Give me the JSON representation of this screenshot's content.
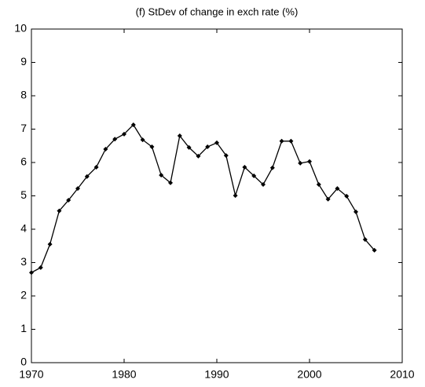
{
  "chart_data": {
    "type": "line",
    "title": "(f) StDev of change in exch rate (%)",
    "x": [
      1970,
      1971,
      1972,
      1973,
      1974,
      1975,
      1976,
      1977,
      1978,
      1979,
      1980,
      1981,
      1982,
      1983,
      1984,
      1985,
      1986,
      1987,
      1988,
      1989,
      1990,
      1991,
      1992,
      1993,
      1994,
      1995,
      1996,
      1997,
      1998,
      1999,
      2000,
      2001,
      2002,
      2003,
      2004,
      2005,
      2006,
      2007
    ],
    "series": [
      {
        "color": "#000000",
        "values": [
          2.7,
          2.85,
          3.55,
          4.55,
          4.87,
          5.22,
          5.58,
          5.86,
          6.4,
          6.7,
          6.85,
          7.13,
          6.68,
          6.47,
          5.62,
          5.39,
          6.8,
          6.45,
          6.19,
          6.47,
          6.59,
          6.21,
          5.01,
          5.86,
          5.6,
          5.34,
          5.84,
          6.64,
          6.64,
          5.98,
          6.03,
          5.34,
          4.9,
          5.22,
          4.99,
          4.52,
          3.69,
          3.37
        ]
      }
    ],
    "xlim": [
      1970,
      2010
    ],
    "xticks": [
      1970,
      1980,
      1990,
      2000,
      2010
    ],
    "ylim": [
      0,
      10
    ],
    "yticks": [
      0,
      1,
      2,
      3,
      4,
      5,
      6,
      7,
      8,
      9,
      10
    ],
    "grid": false
  }
}
